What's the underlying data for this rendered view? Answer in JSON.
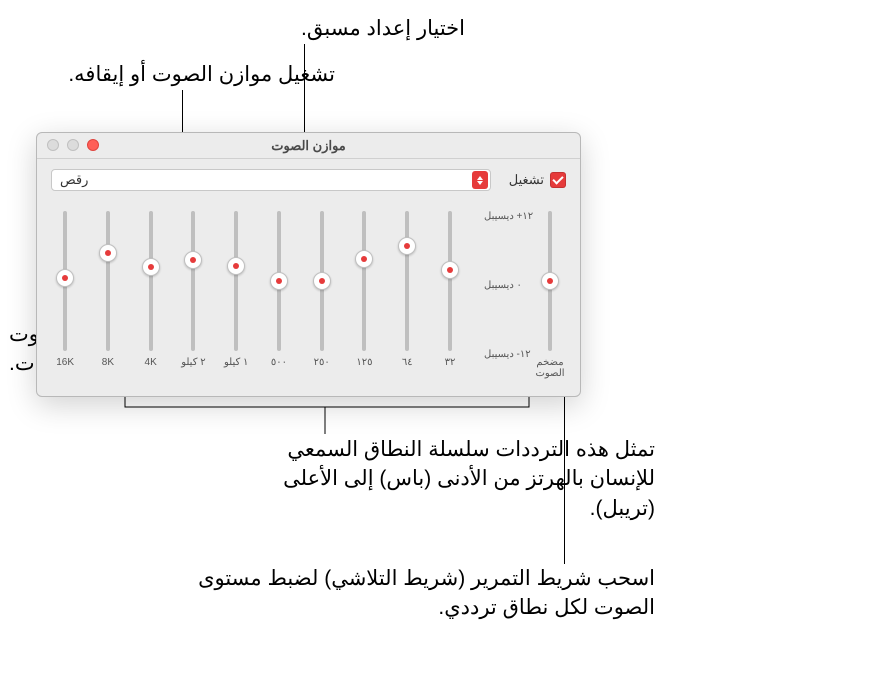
{
  "window": {
    "title": "موازن الصوت",
    "on_label": "تشغيل",
    "on_checked": true,
    "preset_value": "رقص",
    "db_labels": {
      "top": "١٢+ ديسيبل",
      "mid": "٠ ديسيبل",
      "bot": "١٢- ديسيبل"
    },
    "preamp_label": "مضخم الصوت",
    "preamp": {
      "value_pct": 50
    },
    "bands": [
      {
        "freq": "٣٢",
        "value_pct": 42
      },
      {
        "freq": "٦٤",
        "value_pct": 25
      },
      {
        "freq": "١٢٥",
        "value_pct": 34
      },
      {
        "freq": "٢٥٠",
        "value_pct": 50
      },
      {
        "freq": "٥٠٠",
        "value_pct": 50
      },
      {
        "freq": "١ كيلو",
        "value_pct": 39
      },
      {
        "freq": "٢ كيلو",
        "value_pct": 35
      },
      {
        "freq": "4K",
        "value_pct": 40
      },
      {
        "freq": "8K",
        "value_pct": 30
      },
      {
        "freq": "16K",
        "value_pct": 48
      }
    ]
  },
  "callouts": {
    "preset": "اختيار إعداد مسبق.",
    "onoff": "تشغيل موازن الصوت أو إيقافه.",
    "preamp": "ضبط مستوى الصوت العام لكل الترددات.",
    "bands_desc": "تمثل هذه الترددات سلسلة النطاق السمعي للإنسان بالهرتز من الأدنى (باس) إلى الأعلى (تريبل).",
    "slider_desc": "اسحب شريط التمرير (شريط التلاشي) لضبط مستوى الصوت لكل نطاق ترددي."
  },
  "colors": {
    "accent": "#e63b3b",
    "window_bg": "#ececec",
    "track": "#bfbfbf",
    "text": "#333333"
  }
}
